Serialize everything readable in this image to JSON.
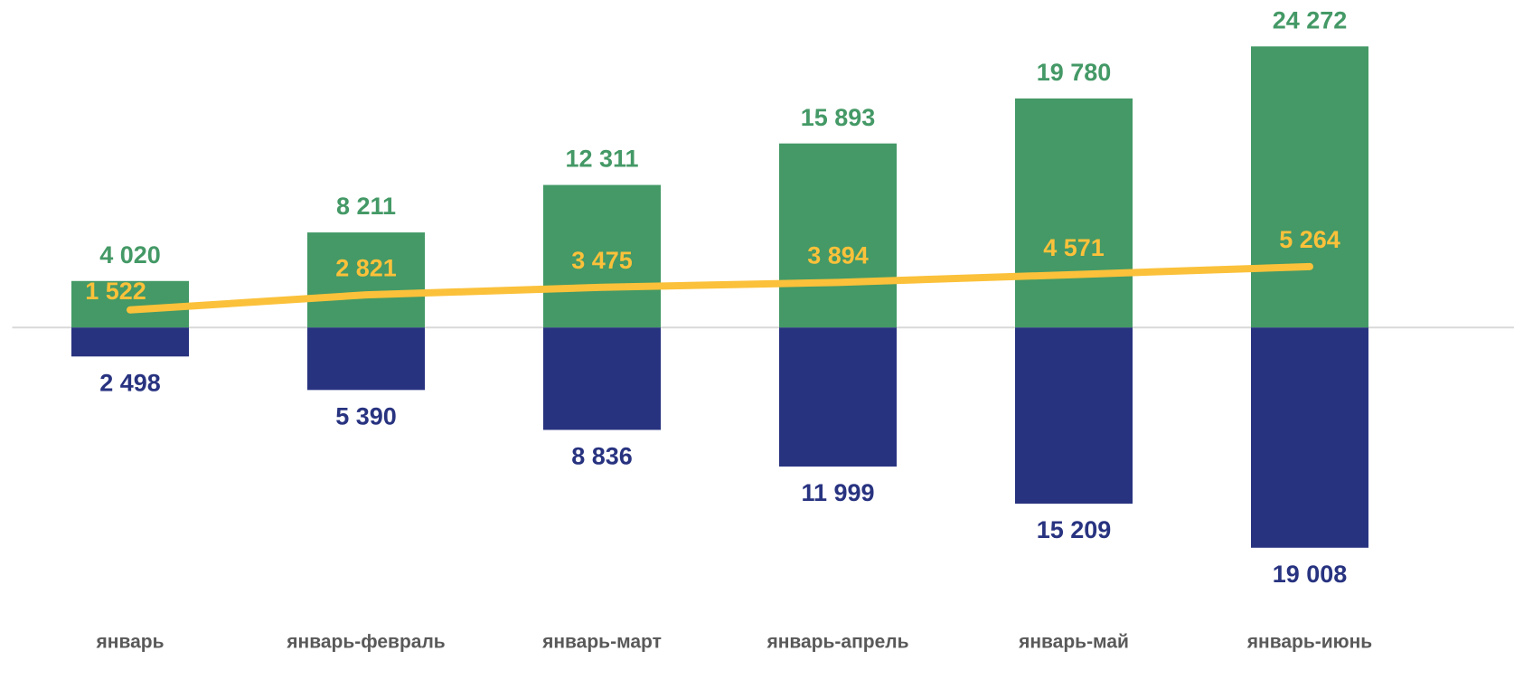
{
  "chart_data": {
    "type": "bar",
    "categories": [
      "январь",
      "январь-февраль",
      "январь-март",
      "январь-апрель",
      "январь-май",
      "январь-июнь"
    ],
    "series": [
      {
        "type": "bar",
        "color": "#449966",
        "values": [
          4020,
          8211,
          12311,
          15893,
          19780,
          24272
        ],
        "value_labels": [
          "4 020",
          "8 211",
          "12 311",
          "15 893",
          "19 780",
          "24 272"
        ]
      },
      {
        "type": "bar",
        "color": "#283380",
        "values": [
          -2498,
          -5390,
          -8836,
          -11999,
          -15209,
          -19008
        ],
        "value_labels": [
          "2 498",
          "5 390",
          "8 836",
          "11 999",
          "15 209",
          "19 008"
        ]
      },
      {
        "type": "line",
        "color": "#fbc13a",
        "values": [
          1522,
          2821,
          3475,
          3894,
          4571,
          5264
        ],
        "value_labels": [
          "1 522",
          "2 821",
          "3 475",
          "3 894",
          "4 571",
          "5 264"
        ]
      }
    ],
    "ylim": [
      -20000,
      25000
    ]
  }
}
